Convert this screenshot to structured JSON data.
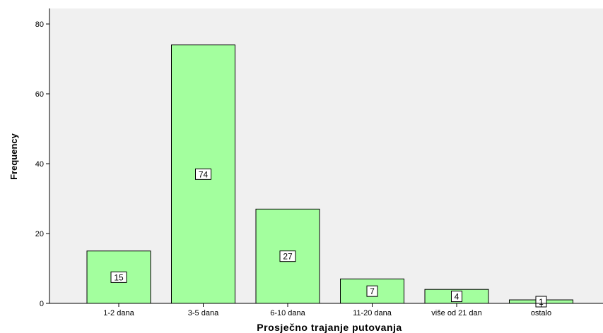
{
  "chart_data": {
    "type": "bar",
    "categories": [
      "1-2 dana",
      "3-5 dana",
      "6-10 dana",
      "11-20 dana",
      "više od 21 dan",
      "ostalo"
    ],
    "values": [
      15,
      74,
      27,
      7,
      4,
      1
    ],
    "data_labels": [
      "15",
      "74",
      "27",
      "7",
      "4",
      "1"
    ],
    "xlabel": "Prosječno trajanje putovanja",
    "ylabel": "Frequency",
    "ylim": [
      0,
      80
    ],
    "yticks": [
      0,
      20,
      40,
      60,
      80
    ],
    "ytick_labels": [
      "0",
      "20",
      "40",
      "60",
      "80"
    ],
    "grid": false,
    "legend": "none",
    "colors": {
      "plot_background": "#F0F0F0",
      "bar_fill": "#A3FF9E",
      "bar_stroke": "#000000",
      "label_box": "#FFFFFF"
    }
  }
}
